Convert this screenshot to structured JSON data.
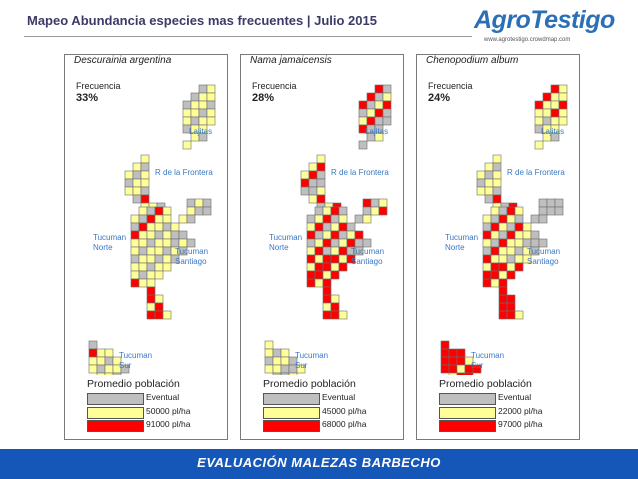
{
  "header": {
    "title": "Mapeo Abundancia especies mas frecuentes | Julio 2015",
    "logo_text": "AgroTestigo",
    "logo_url": "www.agrotestigo.crowdmap.com"
  },
  "colors": {
    "eventual": "#bfbfbf",
    "medium": "#ffff99",
    "high": "#ff0000",
    "footer": "#1557b8",
    "region_label": "#3a78c2"
  },
  "panels": [
    {
      "species": "Descurainia argentina",
      "freq_label": "Frecuencia",
      "freq_value": "33%",
      "regions": {
        "lajitas": "Lajitas",
        "frontera": "R de la Frontera",
        "norte": "Tucuman\nNorte",
        "santiago": "Tucuman\nSantiago",
        "sur": "Tucuman\nSur"
      },
      "legend": {
        "title": "Promedio población",
        "eventual": "Eventual",
        "medium": "50000 pl/ha",
        "high": "91000 pl/ha"
      },
      "abundance_pattern": "mostly-yellow"
    },
    {
      "species": "Nama jamaicensis",
      "freq_label": "Frecuencia",
      "freq_value": "28%",
      "regions": {
        "lajitas": "Lajitas",
        "frontera": "R de la Frontera",
        "norte": "Tucuman\nNorte",
        "santiago": "Tucuman\nSantiago",
        "sur": "Tucuman\nSur"
      },
      "legend": {
        "title": "Promedio población",
        "eventual": "Eventual",
        "medium": "45000 pl/ha",
        "high": "68000 pl/ha"
      },
      "abundance_pattern": "mostly-red"
    },
    {
      "species": "Chenopodium album",
      "freq_label": "Frecuencia",
      "freq_value": "24%",
      "regions": {
        "lajitas": "Lajitas",
        "frontera": "R de la Frontera",
        "norte": "Tucuman\nNorte",
        "santiago": "Tucuman\nSantiago",
        "sur": "Tucuman\nSur"
      },
      "legend": {
        "title": "Promedio población",
        "eventual": "Eventual",
        "medium": "22000 pl/ha",
        "high": "97000 pl/ha"
      },
      "abundance_pattern": "mixed"
    }
  ],
  "footer": {
    "text": "EVALUACIÓN MALEZAS BARBECHO"
  }
}
